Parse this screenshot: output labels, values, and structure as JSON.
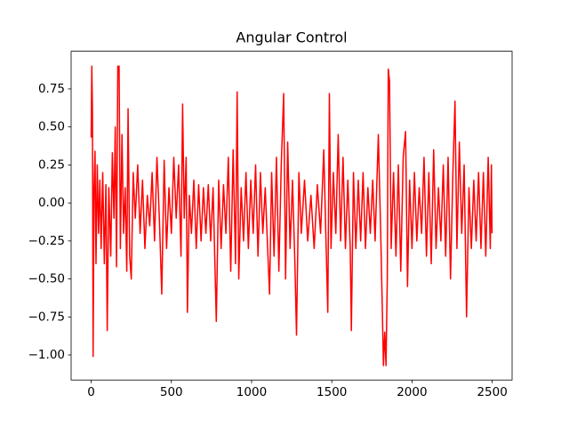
{
  "chart_data": {
    "type": "line",
    "title": "Angular Control",
    "color": "#ff0000",
    "x": [
      0,
      4,
      8,
      12,
      18,
      24,
      30,
      38,
      46,
      54,
      62,
      72,
      82,
      92,
      100,
      110,
      122,
      132,
      142,
      150,
      158,
      166,
      174,
      182,
      192,
      202,
      212,
      222,
      230,
      240,
      250,
      262,
      275,
      290,
      305,
      320,
      335,
      350,
      365,
      380,
      395,
      410,
      425,
      440,
      455,
      470,
      485,
      500,
      515,
      530,
      545,
      560,
      570,
      580,
      592,
      600,
      612,
      625,
      640,
      655,
      670,
      685,
      700,
      715,
      730,
      745,
      760,
      780,
      795,
      810,
      825,
      840,
      855,
      870,
      885,
      900,
      910,
      920,
      935,
      950,
      965,
      980,
      995,
      1010,
      1025,
      1040,
      1055,
      1070,
      1085,
      1100,
      1112,
      1125,
      1140,
      1155,
      1170,
      1185,
      1200,
      1212,
      1225,
      1240,
      1255,
      1270,
      1280,
      1295,
      1310,
      1330,
      1350,
      1370,
      1390,
      1410,
      1430,
      1450,
      1465,
      1475,
      1485,
      1495,
      1510,
      1525,
      1540,
      1555,
      1570,
      1585,
      1600,
      1615,
      1622,
      1635,
      1650,
      1665,
      1680,
      1695,
      1710,
      1725,
      1740,
      1755,
      1770,
      1790,
      1805,
      1815,
      1822,
      1830,
      1838,
      1846,
      1852,
      1860,
      1870,
      1885,
      1900,
      1915,
      1930,
      1945,
      1960,
      1972,
      1985,
      2000,
      2015,
      2030,
      2045,
      2060,
      2075,
      2090,
      2105,
      2120,
      2135,
      2150,
      2165,
      2180,
      2195,
      2210,
      2225,
      2240,
      2255,
      2268,
      2280,
      2295,
      2310,
      2325,
      2340,
      2355,
      2370,
      2385,
      2400,
      2415,
      2430,
      2445,
      2460,
      2475,
      2488,
      2495,
      2499
    ],
    "values": [
      0.43,
      0.9,
      0.6,
      -1.01,
      0.1,
      0.34,
      -0.4,
      0.25,
      -0.2,
      0.15,
      -0.3,
      0.2,
      -0.4,
      0.12,
      -0.84,
      0.1,
      -0.35,
      0.33,
      -0.1,
      0.5,
      -0.42,
      0.9,
      0.9,
      -0.3,
      0.45,
      -0.2,
      0.1,
      -0.45,
      0.62,
      -0.35,
      -0.5,
      0.2,
      -0.1,
      0.25,
      -0.2,
      0.15,
      -0.3,
      0.05,
      -0.15,
      0.2,
      -0.25,
      0.3,
      -0.1,
      -0.6,
      0.28,
      -0.3,
      0.1,
      -0.2,
      0.3,
      -0.1,
      0.25,
      -0.35,
      0.65,
      -0.1,
      0.3,
      -0.72,
      0.05,
      -0.2,
      0.15,
      -0.3,
      0.12,
      -0.25,
      0.1,
      -0.2,
      0.12,
      -0.25,
      0.1,
      -0.78,
      0.15,
      -0.3,
      0.12,
      -0.2,
      0.3,
      -0.45,
      0.35,
      -0.4,
      0.73,
      -0.5,
      0.1,
      -0.25,
      0.2,
      -0.3,
      0.15,
      -0.2,
      0.25,
      -0.35,
      0.2,
      -0.2,
      0.1,
      -0.3,
      -0.6,
      0.2,
      -0.35,
      0.3,
      -0.45,
      0.25,
      0.72,
      -0.5,
      0.4,
      -0.3,
      0.15,
      -0.4,
      -0.87,
      0.2,
      -0.2,
      0.15,
      -0.25,
      0.05,
      -0.3,
      0.12,
      -0.2,
      0.35,
      -0.3,
      -0.72,
      0.72,
      -0.3,
      0.2,
      -0.2,
      0.45,
      -0.25,
      0.3,
      -0.3,
      0.15,
      -0.3,
      -0.84,
      0.2,
      -0.3,
      0.15,
      -0.25,
      0.2,
      -0.3,
      0.1,
      -0.2,
      0.15,
      -0.25,
      0.45,
      -0.2,
      -0.7,
      -1.07,
      -0.85,
      -1.07,
      -0.5,
      0.88,
      0.8,
      -0.3,
      0.2,
      -0.35,
      0.25,
      -0.45,
      0.3,
      0.47,
      -0.55,
      0.15,
      -0.3,
      0.2,
      -0.25,
      0.1,
      -0.2,
      0.3,
      -0.35,
      0.2,
      -0.4,
      0.35,
      -0.3,
      0.1,
      -0.25,
      0.25,
      -0.35,
      0.3,
      -0.5,
      0.2,
      0.67,
      -0.3,
      0.4,
      -0.2,
      0.25,
      -0.75,
      0.1,
      -0.3,
      0.15,
      -0.25,
      0.2,
      -0.3,
      0.2,
      -0.35,
      0.3,
      -0.3,
      0.25,
      -0.2
    ],
    "xlim": [
      -125,
      2624
    ],
    "ylim": [
      -1.165,
      0.998
    ],
    "xticks": [
      0,
      500,
      1000,
      1500,
      2000,
      2500
    ],
    "yticks": [
      {
        "value": -1,
        "label": "−1.00"
      },
      {
        "value": -0.75,
        "label": "−0.75"
      },
      {
        "value": -0.5,
        "label": "−0.50"
      },
      {
        "value": -0.25,
        "label": "−0.25"
      },
      {
        "value": 0,
        "label": "0.00"
      },
      {
        "value": 0.25,
        "label": "0.25"
      },
      {
        "value": 0.5,
        "label": "0.50"
      },
      {
        "value": 0.75,
        "label": "0.75"
      }
    ]
  }
}
